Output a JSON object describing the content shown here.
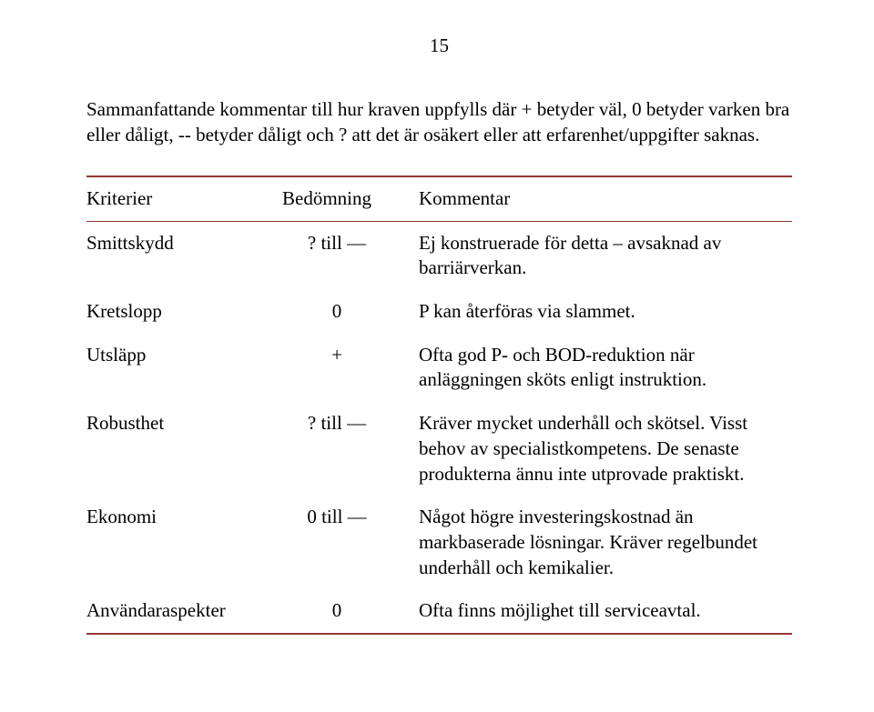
{
  "page_number": "15",
  "intro": "Sammanfattande kommentar till hur kraven uppfylls där + betyder väl, 0 betyder varken bra eller dåligt, -- betyder dåligt och ? att det är osäkert eller att erfarenhet/uppgifter saknas.",
  "table": {
    "border_color": "#953634",
    "headers": {
      "col1": "Kriterier",
      "col2": "Bedömning",
      "col3": "Kommentar"
    },
    "rows": [
      {
        "kriterier": "Smittskydd",
        "bedomning": "? till —",
        "kommentar": "Ej konstruerade för detta – avsaknad av barriärverkan."
      },
      {
        "kriterier": "Kretslopp",
        "bedomning": "0",
        "kommentar": "P kan återföras via slammet."
      },
      {
        "kriterier": "Utsläpp",
        "bedomning": "+",
        "kommentar": "Ofta god P- och BOD-reduktion när anläggningen sköts enligt instruktion."
      },
      {
        "kriterier": "Robusthet",
        "bedomning": "? till —",
        "kommentar": "Kräver mycket underhåll och skötsel. Visst behov av specialistkompetens. De senaste produkterna ännu inte utprovade praktiskt."
      },
      {
        "kriterier": "Ekonomi",
        "bedomning": "0 till —",
        "kommentar": "Något högre investeringskostnad än markbaserade lösningar. Kräver regelbundet underhåll och kemikalier."
      },
      {
        "kriterier": "Användaraspekter",
        "bedomning": "0",
        "kommentar": "Ofta finns möjlighet till serviceavtal."
      }
    ]
  }
}
